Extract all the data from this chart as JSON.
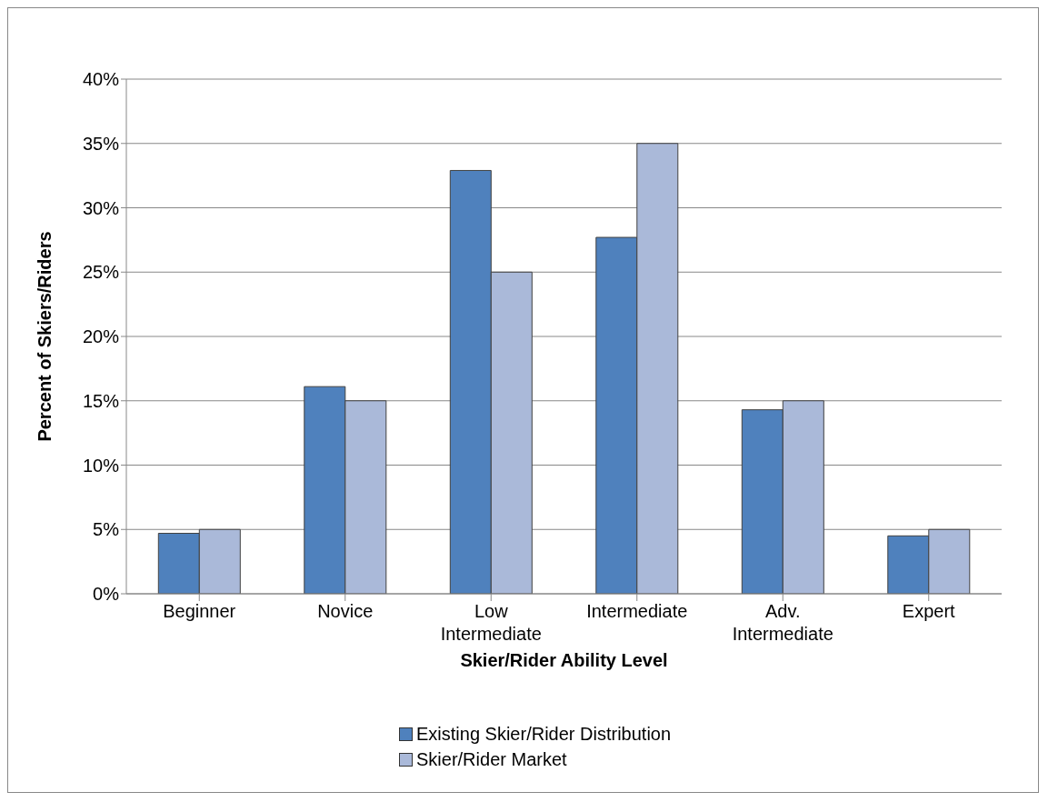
{
  "chart_data": {
    "type": "bar",
    "xlabel": "Skier/Rider Ability Level",
    "ylabel": "Percent of Skiers/Riders",
    "categories": [
      "Beginner",
      "Novice",
      "Low Intermediate",
      "Intermediate",
      "Adv. Intermediate",
      "Expert"
    ],
    "series": [
      {
        "name": "Existing Skier/Rider Distribution",
        "color": "#4f81bd",
        "values": [
          4.7,
          16.1,
          32.9,
          27.7,
          14.3,
          4.5
        ]
      },
      {
        "name": "Skier/Rider Market",
        "color": "#aab9d9",
        "values": [
          5,
          15,
          25,
          35,
          15,
          5
        ]
      }
    ],
    "ylim": [
      0,
      40
    ],
    "yticks": [
      {
        "value": 0,
        "label": "0%"
      },
      {
        "value": 5,
        "label": "5%"
      },
      {
        "value": 10,
        "label": "10%"
      },
      {
        "value": 15,
        "label": "15%"
      },
      {
        "value": 20,
        "label": "20%"
      },
      {
        "value": 25,
        "label": "25%"
      },
      {
        "value": 30,
        "label": "30%"
      },
      {
        "value": 35,
        "label": "35%"
      },
      {
        "value": 40,
        "label": "40%"
      }
    ],
    "grid": "y",
    "legend": "bottom"
  }
}
